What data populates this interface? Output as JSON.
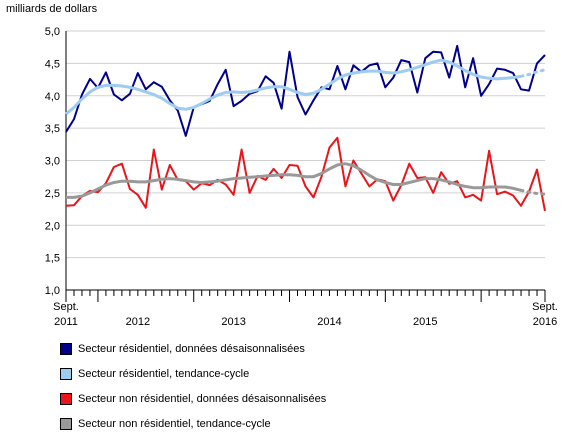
{
  "chart_data": {
    "type": "line",
    "unit_label": "milliards de dollars",
    "ylim": [
      1.0,
      5.0
    ],
    "yticks": [
      "1,0",
      "1,5",
      "2,0",
      "2,5",
      "3,0",
      "3,5",
      "4,0",
      "4,5",
      "5,0"
    ],
    "ytick_values": [
      1.0,
      1.5,
      2.0,
      2.5,
      3.0,
      3.5,
      4.0,
      4.5,
      5.0
    ],
    "x_start": "2011-09",
    "x_end": "2016-09",
    "xtick_labels": [
      {
        "month_index": 0,
        "line1": "Sept.",
        "line2": "2011"
      },
      {
        "month_index": 9,
        "line1": "",
        "line2": "2012"
      },
      {
        "month_index": 21,
        "line1": "",
        "line2": "2013"
      },
      {
        "month_index": 33,
        "line1": "",
        "line2": "2014"
      },
      {
        "month_index": 45,
        "line1": "",
        "line2": "2015"
      },
      {
        "month_index": 60,
        "line1": "Sept.",
        "line2": "2016"
      }
    ],
    "grid": true,
    "series": [
      {
        "name": "Secteur résidentiel, données désaisonnalisées",
        "color": "#00008b",
        "style": "solid",
        "values": [
          3.44,
          3.64,
          4.02,
          4.26,
          4.12,
          4.36,
          4.02,
          3.93,
          4.03,
          4.35,
          4.1,
          4.21,
          4.14,
          3.93,
          3.77,
          3.38,
          3.82,
          3.87,
          3.92,
          4.18,
          4.4,
          3.84,
          3.92,
          4.03,
          4.07,
          4.3,
          4.2,
          3.8,
          4.68,
          3.98,
          3.71,
          3.93,
          4.13,
          4.1,
          4.46,
          4.1,
          4.47,
          4.37,
          4.47,
          4.5,
          4.13,
          4.28,
          4.55,
          4.52,
          4.05,
          4.58,
          4.68,
          4.67,
          4.28,
          4.77,
          4.13,
          4.58,
          4.0,
          4.18,
          4.42,
          4.4,
          4.35,
          4.1,
          4.08,
          4.5,
          4.63
        ]
      },
      {
        "name": "Secteur résidentiel, tendance-cycle",
        "color": "#9ecbf0",
        "style": "solid",
        "dashed_from_index": 57,
        "values": [
          3.72,
          3.82,
          3.95,
          4.06,
          4.13,
          4.16,
          4.16,
          4.15,
          4.13,
          4.1,
          4.06,
          4.02,
          3.96,
          3.88,
          3.81,
          3.79,
          3.82,
          3.88,
          3.95,
          4.01,
          4.05,
          4.06,
          4.05,
          4.06,
          4.09,
          4.12,
          4.14,
          4.14,
          4.1,
          4.05,
          4.02,
          4.04,
          4.1,
          4.18,
          4.26,
          4.32,
          4.35,
          4.37,
          4.38,
          4.38,
          4.36,
          4.35,
          4.37,
          4.4,
          4.44,
          4.48,
          4.52,
          4.55,
          4.52,
          4.46,
          4.39,
          4.33,
          4.29,
          4.27,
          4.26,
          4.27,
          4.28,
          4.3,
          4.33,
          4.37,
          4.4
        ]
      },
      {
        "name": "Secteur non résidentiel, données désaisonnalisées",
        "color": "#e8161b",
        "style": "solid",
        "values": [
          2.3,
          2.31,
          2.45,
          2.53,
          2.51,
          2.65,
          2.9,
          2.95,
          2.56,
          2.47,
          2.27,
          3.17,
          2.55,
          2.93,
          2.7,
          2.68,
          2.55,
          2.65,
          2.62,
          2.7,
          2.63,
          2.47,
          3.17,
          2.5,
          2.76,
          2.7,
          2.87,
          2.73,
          2.93,
          2.92,
          2.6,
          2.43,
          2.75,
          3.2,
          3.35,
          2.6,
          3.0,
          2.8,
          2.6,
          2.71,
          2.68,
          2.38,
          2.62,
          2.95,
          2.73,
          2.74,
          2.5,
          2.82,
          2.64,
          2.68,
          2.43,
          2.47,
          2.38,
          3.15,
          2.48,
          2.52,
          2.46,
          2.3,
          2.52,
          2.86,
          2.22
        ]
      },
      {
        "name": "Secteur non résidentiel, tendance-cycle",
        "color": "#999999",
        "style": "solid",
        "dashed_from_index": 57,
        "values": [
          2.43,
          2.43,
          2.45,
          2.5,
          2.56,
          2.62,
          2.66,
          2.68,
          2.68,
          2.67,
          2.67,
          2.69,
          2.71,
          2.72,
          2.71,
          2.69,
          2.67,
          2.66,
          2.67,
          2.68,
          2.7,
          2.72,
          2.73,
          2.74,
          2.75,
          2.76,
          2.77,
          2.78,
          2.78,
          2.77,
          2.75,
          2.75,
          2.8,
          2.87,
          2.93,
          2.95,
          2.92,
          2.85,
          2.77,
          2.7,
          2.66,
          2.63,
          2.63,
          2.66,
          2.69,
          2.72,
          2.72,
          2.7,
          2.67,
          2.63,
          2.6,
          2.58,
          2.58,
          2.59,
          2.59,
          2.59,
          2.57,
          2.54,
          2.51,
          2.49,
          2.48
        ]
      }
    ]
  }
}
